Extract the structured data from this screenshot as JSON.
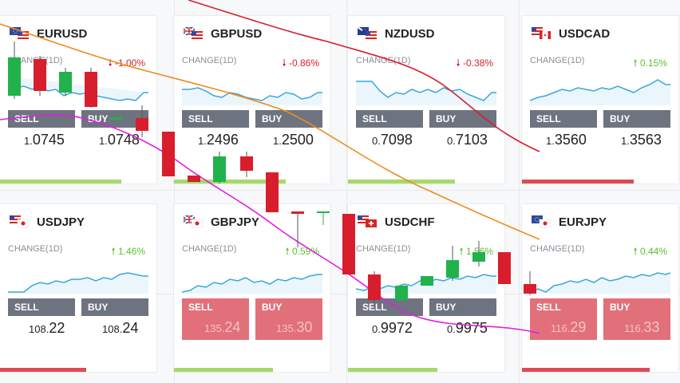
{
  "colors": {
    "negative": "#d81e2c",
    "positive": "#5fbf2e",
    "button": "#6e7380",
    "button_alert": "#e2707a"
  },
  "buttons": {
    "sell": "SELL",
    "buy": "BUY"
  },
  "change_label": "CHANGE(1D)",
  "cards": [
    {
      "symbol": "EURUSD",
      "flag": "eu-us-flag-icon",
      "change": "-1.00%",
      "direction": "down",
      "sell_main": "1.",
      "sell_big": "0745",
      "buy_main": "1.",
      "buy_big": "0748",
      "bar_color": "#a6d96a"
    },
    {
      "symbol": "GBPUSD",
      "flag": "uk-us-flag-icon",
      "change": "-0.86%",
      "direction": "down",
      "sell_main": "1.",
      "sell_big": "2496",
      "buy_main": "1.",
      "buy_big": "2500",
      "bar_color": "#a6d96a"
    },
    {
      "symbol": "NZDUSD",
      "flag": "nz-us-flag-icon",
      "change": "-0.38%",
      "direction": "down",
      "sell_main": "0.",
      "sell_big": "7098",
      "buy_main": "0.",
      "buy_big": "7103",
      "bar_color": "#a6d96a"
    },
    {
      "symbol": "USDCAD",
      "flag": "us-ca-flag-icon",
      "change": "0.15%",
      "direction": "up",
      "sell_main": "1.",
      "sell_big": "3560",
      "buy_main": "1.",
      "buy_big": "3563",
      "bar_color": "#e04a55"
    },
    {
      "symbol": "USDJPY",
      "flag": "us-jp-flag-icon",
      "change": "1.46%",
      "direction": "up",
      "sell_main": "108.",
      "sell_big": "22",
      "buy_main": "108.",
      "buy_big": "24",
      "bar_color": "#e04a55"
    },
    {
      "symbol": "GBPJPY",
      "flag": "uk-jp-flag-icon",
      "change": "0.59%",
      "direction": "up",
      "sell_main": "135.",
      "sell_big": "24",
      "buy_main": "135.",
      "buy_big": "30",
      "bar_color": "#a6d96a"
    },
    {
      "symbol": "USDCHF",
      "flag": "us-ch-flag-icon",
      "change": "1.56%",
      "direction": "up",
      "sell_main": "0.",
      "sell_big": "9972",
      "buy_main": "0.",
      "buy_big": "9975",
      "bar_color": "#a6d96a"
    },
    {
      "symbol": "EURJPY",
      "flag": "eu-jp-flag-icon",
      "change": "0.44%",
      "direction": "up",
      "sell_main": "116.",
      "sell_big": "29",
      "buy_main": "116.",
      "buy_big": "33",
      "bar_color": "#e04a55"
    }
  ]
}
